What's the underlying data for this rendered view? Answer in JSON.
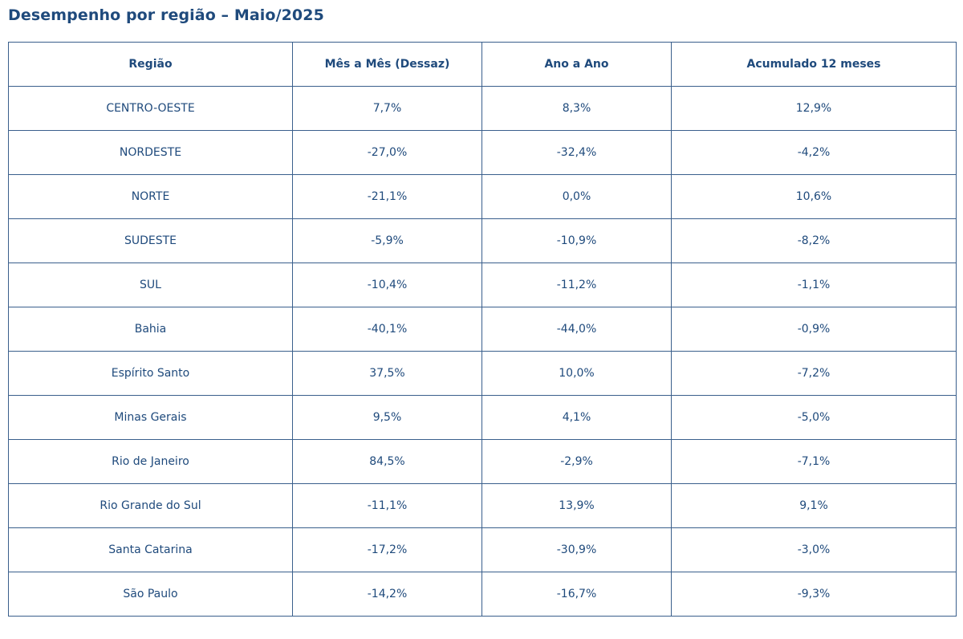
{
  "title": "Desempenho por região – Maio/2025",
  "table": {
    "headers": [
      "Região",
      "Mês a Mês (Dessaz)",
      "Ano a Ano",
      "Acumulado 12 meses"
    ],
    "rows": [
      [
        "CENTRO-OESTE",
        "7,7%",
        "8,3%",
        "12,9%"
      ],
      [
        "NORDESTE",
        "-27,0%",
        "-32,4%",
        "-4,2%"
      ],
      [
        "NORTE",
        "-21,1%",
        "0,0%",
        "10,6%"
      ],
      [
        "SUDESTE",
        "-5,9%",
        "-10,9%",
        "-8,2%"
      ],
      [
        "SUL",
        "-10,4%",
        "-11,2%",
        "-1,1%"
      ],
      [
        "Bahia",
        "-40,1%",
        "-44,0%",
        "-0,9%"
      ],
      [
        "Espírito Santo",
        "37,5%",
        "10,0%",
        "-7,2%"
      ],
      [
        "Minas Gerais",
        "9,5%",
        "4,1%",
        "-5,0%"
      ],
      [
        "Rio de Janeiro",
        "84,5%",
        "-2,9%",
        "-7,1%"
      ],
      [
        "Rio Grande do Sul",
        "-11,1%",
        "13,9%",
        "9,1%"
      ],
      [
        "Santa Catarina",
        "-17,2%",
        "-30,9%",
        "-3,0%"
      ],
      [
        "São Paulo",
        "-14,2%",
        "-16,7%",
        "-9,3%"
      ]
    ]
  },
  "colors": {
    "text": "#1f4a7c",
    "border": "#3a5f8c",
    "background": "#ffffff"
  }
}
